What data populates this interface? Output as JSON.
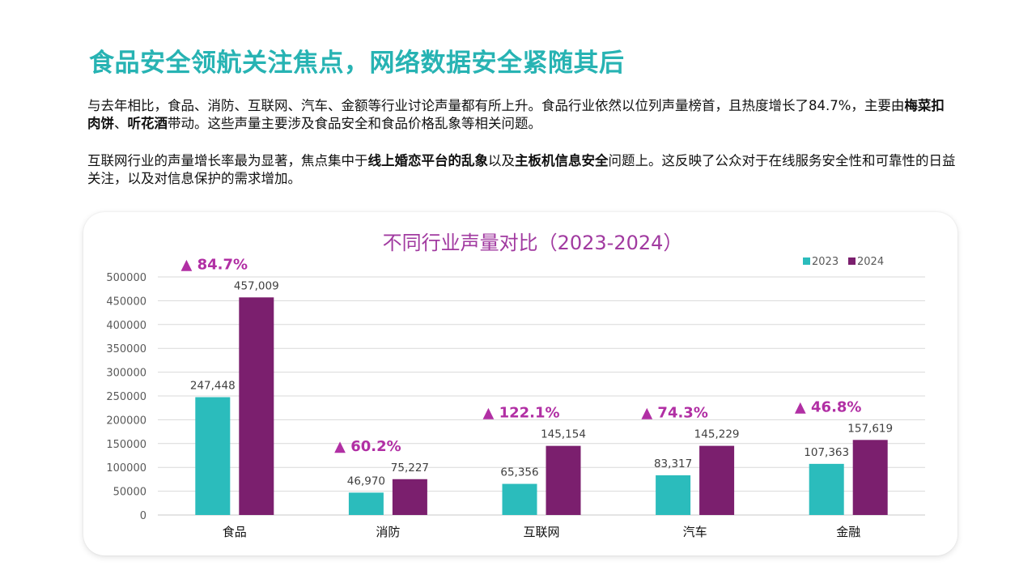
{
  "header": {
    "title": "食品安全领航关注焦点，网络数据安全紧随其后"
  },
  "paragraphs": {
    "p1": {
      "part1": "与去年相比，食品、消防、互联网、汽车、金额等行业讨论声量都有所上升。食品行业依然以位列声量榜首，且热度增长了84.7%，主要由",
      "bold1": "梅菜扣肉饼",
      "sep1": "、",
      "bold2": "听花酒",
      "part2": "带动。这些声量主要涉及食品安全和食品价格乱象等相关问题。"
    },
    "p2": {
      "part1": "互联网行业的声量增长率最为显著，焦点集中于",
      "bold1": "线上婚恋平台的乱象",
      "part2": "以及",
      "bold2": "主板机信息安全",
      "part3": "问题上。这反映了公众对于在线服务安全性和可靠性的日益关注，以及对信息保护的需求增加。"
    }
  },
  "colors": {
    "series_2023": "#2bbcbc",
    "series_2024": "#7b1f6e",
    "growth_label": "#b12fa4",
    "chart_title": "#a13aa0",
    "page_title": "#27b3b3"
  },
  "chart_data": {
    "type": "bar",
    "title": "不同行业声量对比（2023-2024）",
    "categories": [
      "食品",
      "消防",
      "互联网",
      "汽车",
      "金融"
    ],
    "series": [
      {
        "name": "2023",
        "values": [
          247448,
          46970,
          65356,
          83317,
          107363
        ],
        "labels": [
          "247,448",
          "46,970",
          "65,356",
          "83,317",
          "107,363"
        ]
      },
      {
        "name": "2024",
        "values": [
          457009,
          75227,
          145154,
          145229,
          157619
        ],
        "labels": [
          "457,009",
          "75,227",
          "145,154",
          "145,229",
          "157,619"
        ]
      }
    ],
    "growth": [
      "▲ 84.7%",
      "▲ 60.2%",
      "▲ 122.1%",
      "▲ 74.3%",
      "▲ 46.8%"
    ],
    "ylim": [
      0,
      500000
    ],
    "yticks": [
      0,
      50000,
      100000,
      150000,
      200000,
      250000,
      300000,
      350000,
      400000,
      450000,
      500000
    ],
    "ytick_labels": [
      "0",
      "50000",
      "100000",
      "150000",
      "200000",
      "250000",
      "300000",
      "350000",
      "400000",
      "450000",
      "500000"
    ],
    "grid": true,
    "legend_position": "top-right",
    "xlabel": "",
    "ylabel": ""
  }
}
